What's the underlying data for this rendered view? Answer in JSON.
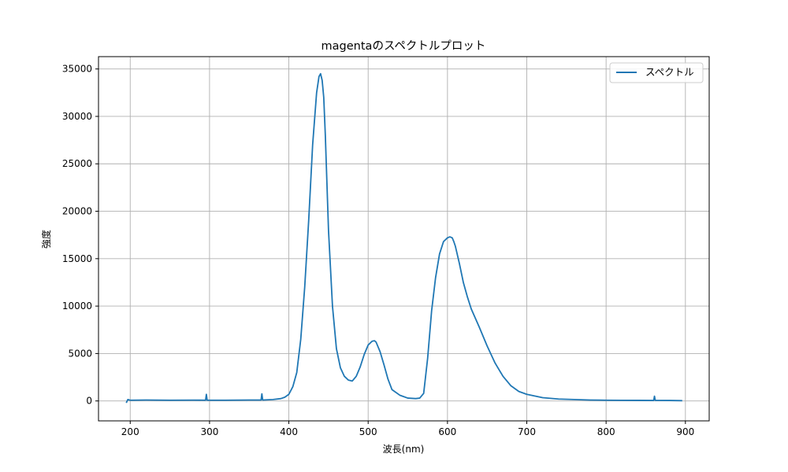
{
  "chart_data": {
    "type": "line",
    "title": "magentaのスペクトルプロット",
    "xlabel": "波長(nm)",
    "ylabel": "強度",
    "xlim": [
      160,
      930
    ],
    "ylim": [
      -2100,
      36300
    ],
    "xticks": [
      200,
      300,
      400,
      500,
      600,
      700,
      800,
      900
    ],
    "yticks": [
      0,
      5000,
      10000,
      15000,
      20000,
      25000,
      30000,
      35000
    ],
    "grid": true,
    "legend": {
      "location": "top-right",
      "entries": [
        "スペクトル"
      ]
    },
    "series": [
      {
        "name": "スペクトル",
        "color": "#1f77b4",
        "x": [
          195,
          197,
          200,
          220,
          250,
          280,
          295,
          296,
          297,
          320,
          350,
          365,
          366,
          367,
          380,
          390,
          395,
          400,
          405,
          410,
          415,
          420,
          425,
          430,
          435,
          438,
          440,
          442,
          444,
          446,
          448,
          450,
          455,
          460,
          465,
          470,
          475,
          480,
          485,
          490,
          495,
          500,
          505,
          508,
          510,
          515,
          520,
          525,
          530,
          540,
          550,
          560,
          565,
          570,
          575,
          580,
          585,
          590,
          595,
          600,
          603,
          606,
          608,
          610,
          615,
          620,
          625,
          630,
          640,
          650,
          660,
          670,
          680,
          690,
          700,
          720,
          740,
          760,
          780,
          800,
          820,
          840,
          860,
          861,
          862,
          880,
          896
        ],
        "y": [
          -200,
          150,
          80,
          100,
          80,
          90,
          80,
          700,
          80,
          80,
          100,
          100,
          750,
          100,
          150,
          250,
          400,
          700,
          1500,
          3000,
          6500,
          12000,
          19000,
          27000,
          32500,
          34200,
          34500,
          33800,
          32000,
          28000,
          23000,
          18000,
          10000,
          5500,
          3500,
          2600,
          2200,
          2100,
          2600,
          3600,
          4900,
          5900,
          6300,
          6350,
          6200,
          5200,
          3800,
          2300,
          1200,
          600,
          300,
          250,
          300,
          800,
          4500,
          9500,
          13000,
          15500,
          16800,
          17200,
          17300,
          17200,
          16800,
          16300,
          14500,
          12500,
          11000,
          9700,
          7800,
          5800,
          4000,
          2600,
          1600,
          1000,
          700,
          350,
          200,
          150,
          100,
          80,
          70,
          60,
          50,
          500,
          60,
          50,
          30
        ]
      }
    ]
  }
}
